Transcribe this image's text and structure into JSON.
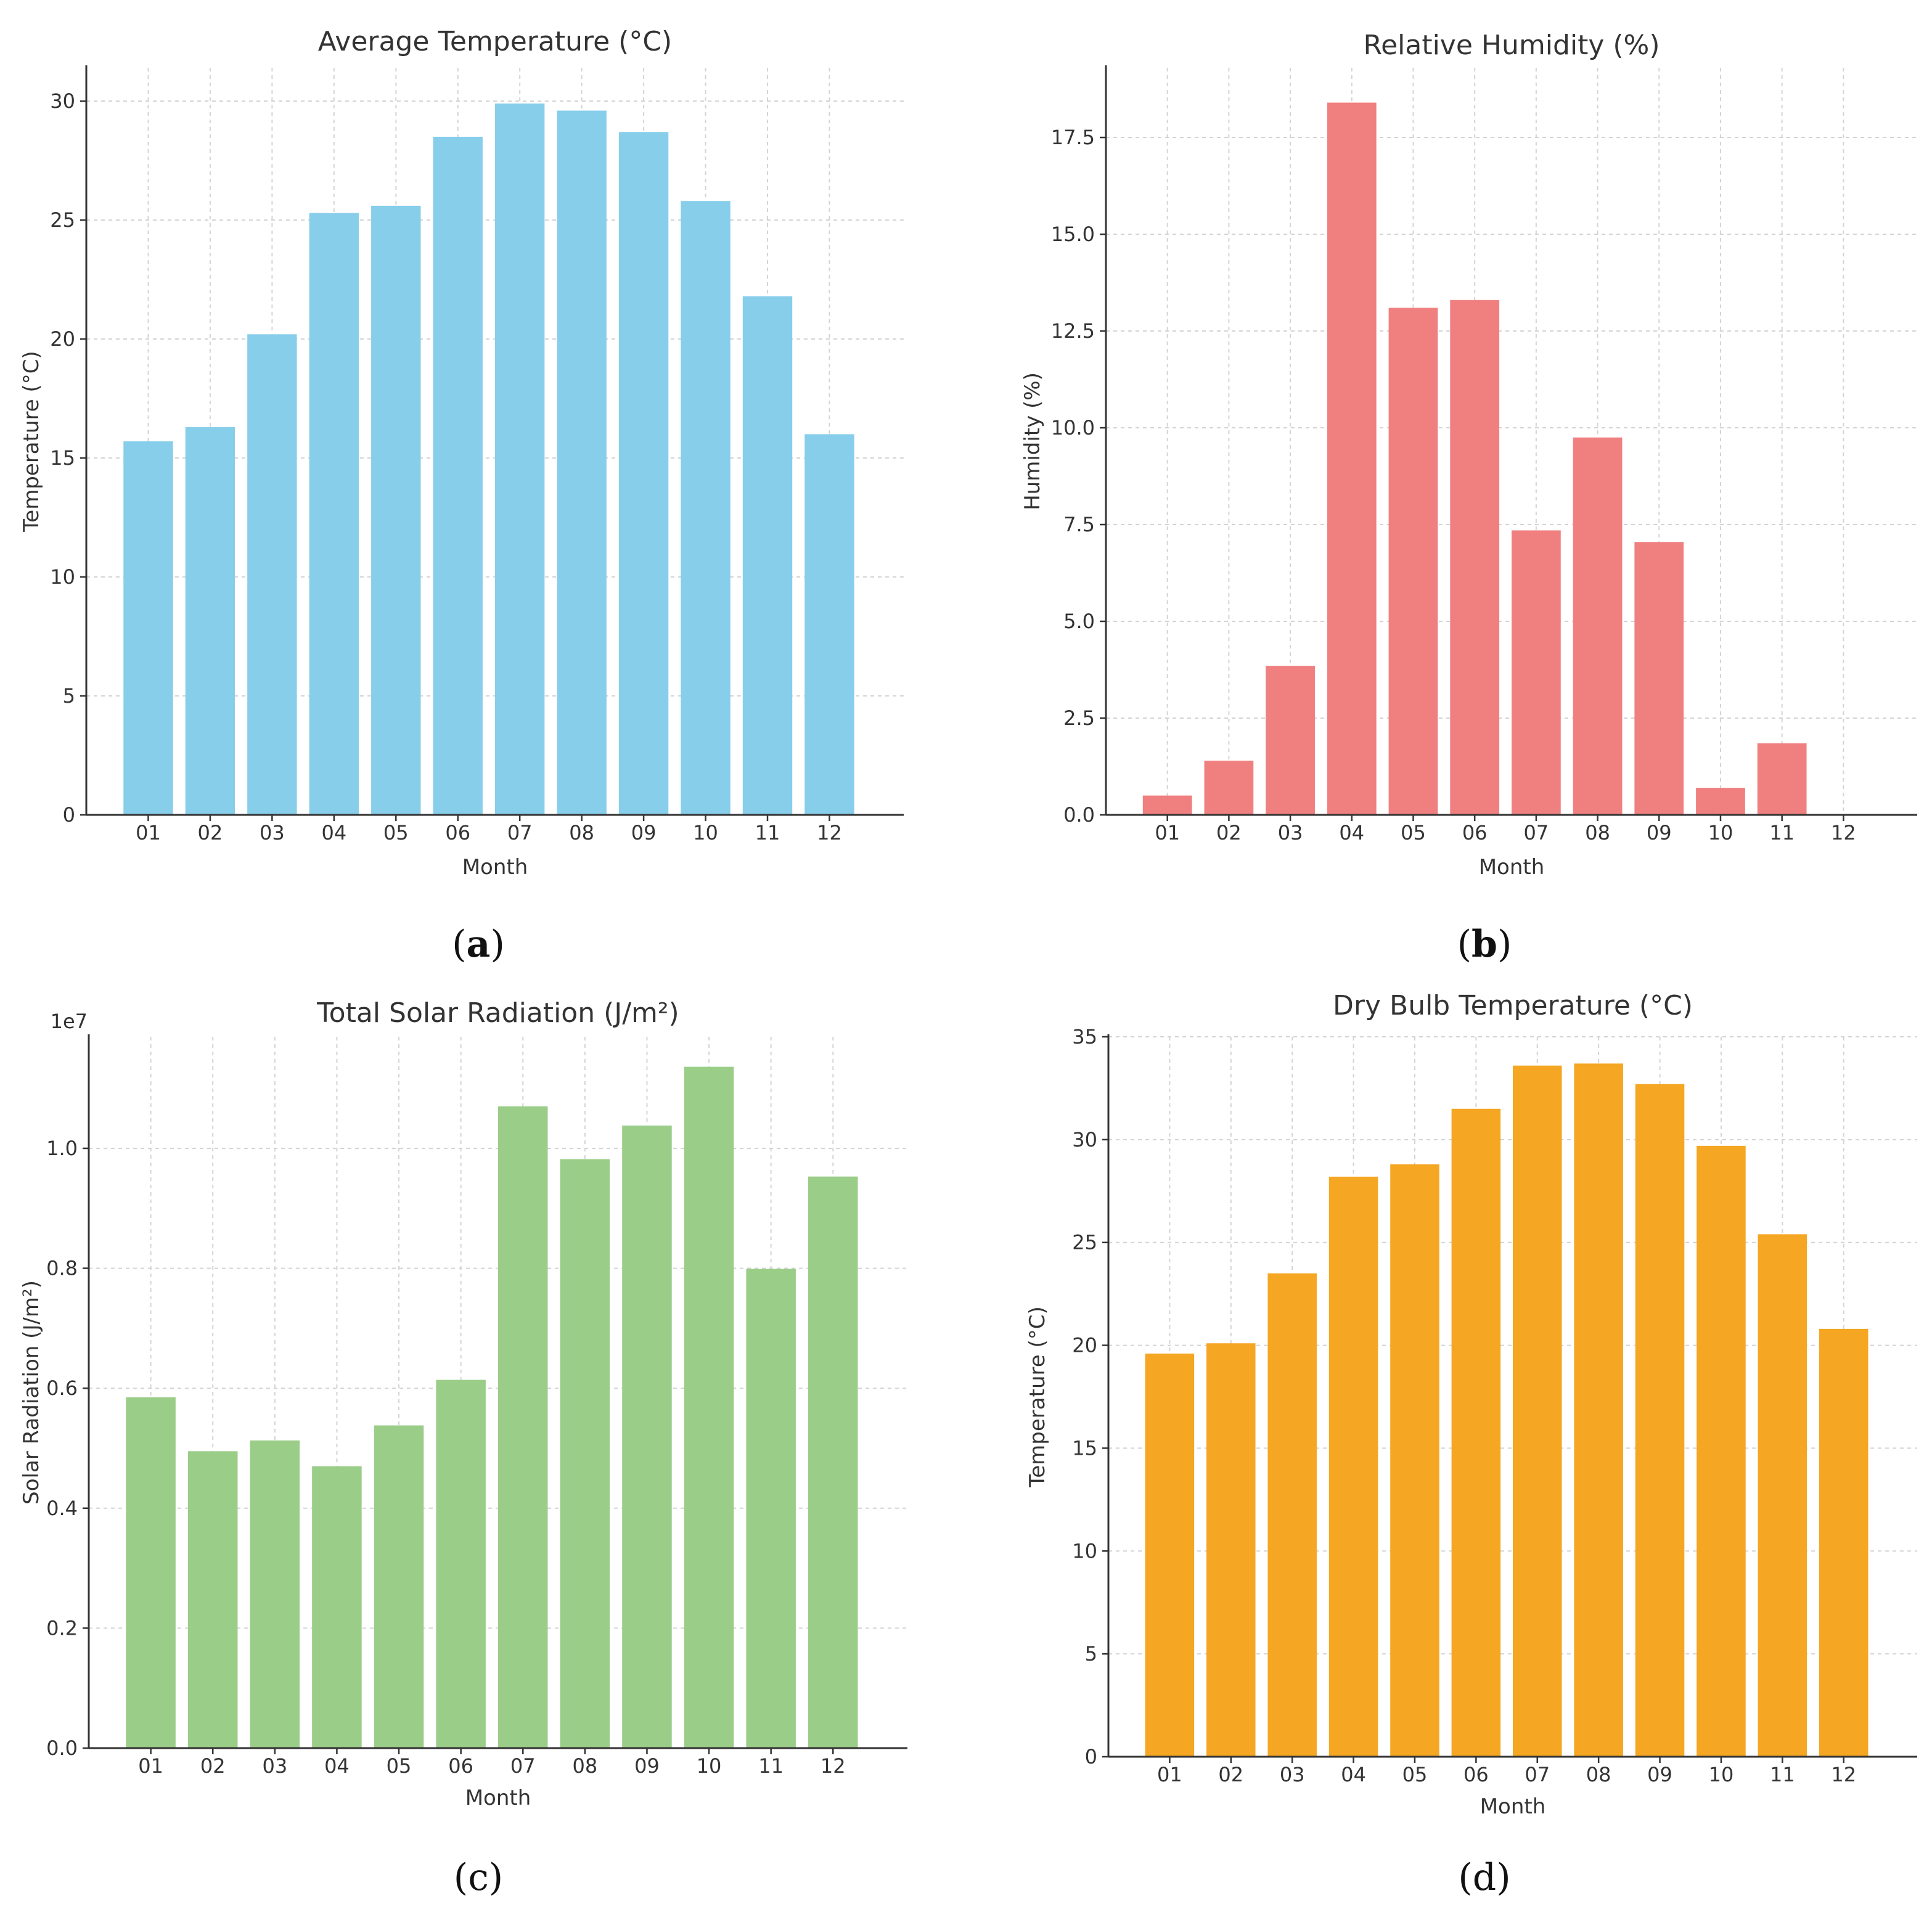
{
  "chart_data": [
    {
      "type": "bar",
      "panel": "a",
      "caption": {
        "open": "(",
        "letter": "a",
        "close": ")",
        "bold": true
      },
      "title": "Average Temperature (°C)",
      "xlabel": "Month",
      "ylabel": "Temperature (°C)",
      "categories": [
        "01",
        "02",
        "03",
        "04",
        "05",
        "06",
        "07",
        "08",
        "09",
        "10",
        "11",
        "12"
      ],
      "values": [
        15.7,
        16.3,
        20.2,
        25.3,
        25.6,
        28.5,
        29.9,
        29.6,
        28.7,
        25.8,
        21.8,
        16.0
      ],
      "ylim": [
        0,
        31.4
      ],
      "yticks": [
        0,
        5,
        10,
        15,
        20,
        25,
        30
      ],
      "ytick_labels": [
        "0",
        "5",
        "10",
        "15",
        "20",
        "25",
        "30"
      ],
      "offset_text": "",
      "grid": true,
      "color": "#87CEEB"
    },
    {
      "type": "bar",
      "panel": "b",
      "caption": {
        "open": "(",
        "letter": "b",
        "close": ")",
        "bold": true
      },
      "title": "Relative Humidity (%)",
      "xlabel": "Month",
      "ylabel": "Humidity (%)",
      "categories": [
        "01",
        "02",
        "03",
        "04",
        "05",
        "06",
        "07",
        "08",
        "09",
        "10",
        "11",
        "12"
      ],
      "values": [
        0.5,
        1.4,
        3.85,
        18.4,
        13.1,
        13.3,
        7.35,
        9.75,
        7.05,
        0.7,
        1.85,
        0.0
      ],
      "ylim": [
        0,
        19.3
      ],
      "yticks": [
        0,
        2.5,
        5,
        7.5,
        10,
        12.5,
        15,
        17.5
      ],
      "ytick_labels": [
        "0.0",
        "2.5",
        "5.0",
        "7.5",
        "10.0",
        "12.5",
        "15.0",
        "17.5"
      ],
      "offset_text": "",
      "grid": true,
      "color": "#F08080"
    },
    {
      "type": "bar",
      "panel": "c",
      "caption": {
        "open": "(",
        "letter": "c",
        "close": ")",
        "bold": false
      },
      "title": "Total Solar Radiation (J/m²)",
      "xlabel": "Month",
      "ylabel": "Solar Radiation (J/m²)",
      "categories": [
        "01",
        "02",
        "03",
        "04",
        "05",
        "06",
        "07",
        "08",
        "09",
        "10",
        "11",
        "12"
      ],
      "values": [
        5850000,
        4950000,
        5130000,
        4700000,
        5380000,
        6140000,
        10700000,
        9820000,
        10380000,
        11360000,
        7990000,
        9530000
      ],
      "ylim": [
        0,
        11860000
      ],
      "yticks": [
        0,
        2000000,
        4000000,
        6000000,
        8000000,
        10000000
      ],
      "ytick_labels": [
        "0.0",
        "0.2",
        "0.4",
        "0.6",
        "0.8",
        "1.0"
      ],
      "offset_text": "1e7",
      "grid": true,
      "color": "#9ACD88"
    },
    {
      "type": "bar",
      "panel": "d",
      "caption": {
        "open": "(",
        "letter": "d",
        "close": ")",
        "bold": false
      },
      "title": "Dry Bulb Temperature (°C)",
      "xlabel": "Month",
      "ylabel": "Temperature (°C)",
      "categories": [
        "01",
        "02",
        "03",
        "04",
        "05",
        "06",
        "07",
        "08",
        "09",
        "10",
        "11",
        "12"
      ],
      "values": [
        19.6,
        20.1,
        23.5,
        28.2,
        28.8,
        31.5,
        33.6,
        33.7,
        32.7,
        29.7,
        25.4,
        20.8
      ],
      "ylim": [
        0,
        35
      ],
      "yticks": [
        0,
        5,
        10,
        15,
        20,
        25,
        30,
        35
      ],
      "ytick_labels": [
        "0",
        "5",
        "10",
        "15",
        "20",
        "25",
        "30",
        "35"
      ],
      "offset_text": "",
      "grid": true,
      "color": "#F5A623"
    }
  ]
}
